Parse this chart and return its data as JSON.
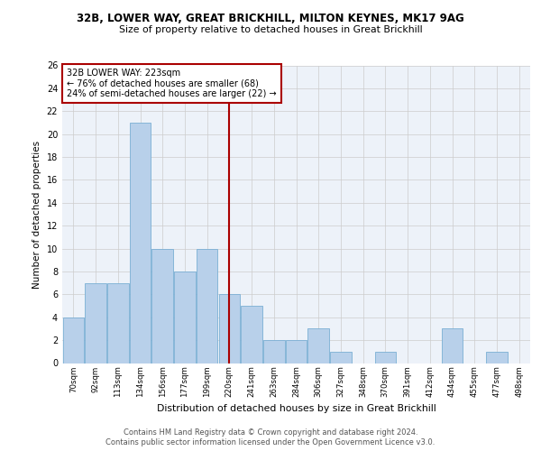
{
  "title1": "32B, LOWER WAY, GREAT BRICKHILL, MILTON KEYNES, MK17 9AG",
  "title2": "Size of property relative to detached houses in Great Brickhill",
  "xlabel": "Distribution of detached houses by size in Great Brickhill",
  "ylabel": "Number of detached properties",
  "footnote1": "Contains HM Land Registry data © Crown copyright and database right 2024.",
  "footnote2": "Contains public sector information licensed under the Open Government Licence v3.0.",
  "categories": [
    "70sqm",
    "92sqm",
    "113sqm",
    "134sqm",
    "156sqm",
    "177sqm",
    "199sqm",
    "220sqm",
    "241sqm",
    "263sqm",
    "284sqm",
    "306sqm",
    "327sqm",
    "348sqm",
    "370sqm",
    "391sqm",
    "412sqm",
    "434sqm",
    "455sqm",
    "477sqm",
    "498sqm"
  ],
  "values": [
    4,
    7,
    7,
    21,
    10,
    8,
    10,
    6,
    5,
    2,
    2,
    3,
    1,
    0,
    1,
    0,
    0,
    3,
    0,
    1,
    0
  ],
  "bar_color": "#b8d0ea",
  "bar_edge_color": "#7aafd4",
  "vline_color": "#aa0000",
  "annotation_title": "32B LOWER WAY: 223sqm",
  "annotation_line1": "← 76% of detached houses are smaller (68)",
  "annotation_line2": "24% of semi-detached houses are larger (22) →",
  "box_color": "#aa0000",
  "ylim": [
    0,
    26
  ],
  "yticks": [
    0,
    2,
    4,
    6,
    8,
    10,
    12,
    14,
    16,
    18,
    20,
    22,
    24,
    26
  ],
  "grid_color": "#cccccc",
  "plot_bg_color": "#edf2f9"
}
